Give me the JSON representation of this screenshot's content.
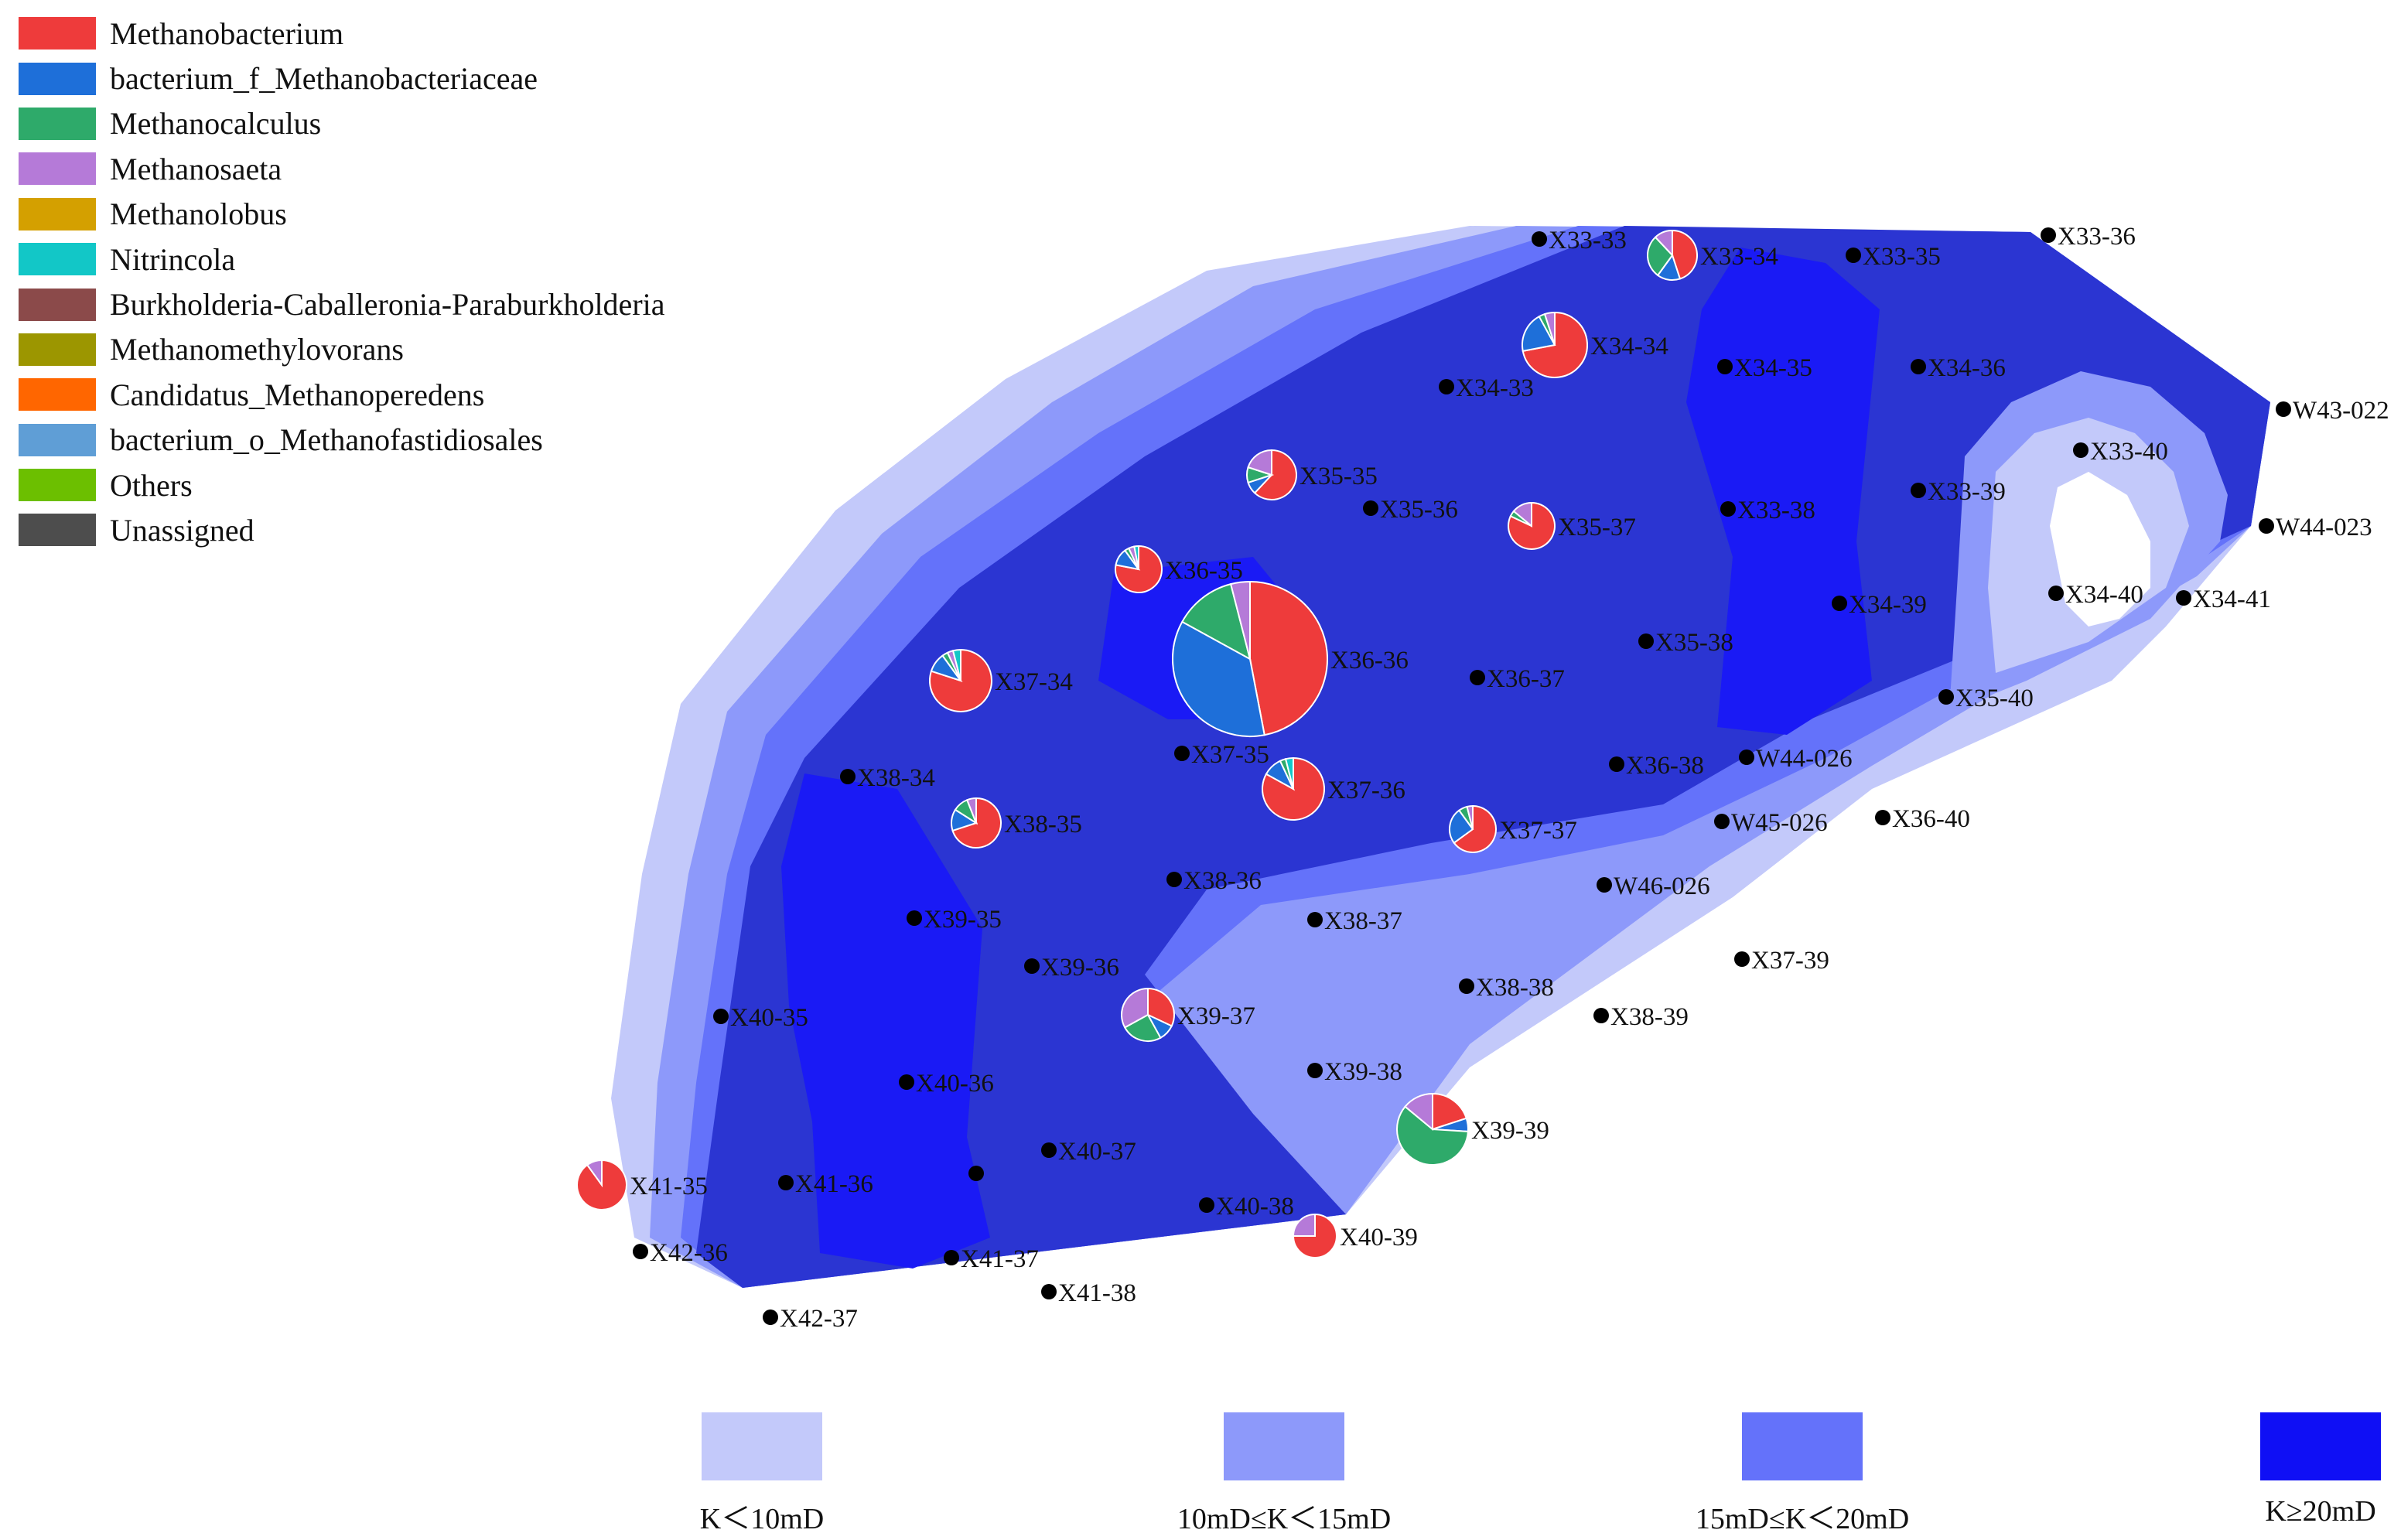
{
  "taxa_legend": [
    {
      "name": "Methanobacterium",
      "color": "#ee3b3b"
    },
    {
      "name": "bacterium_f_Methanobacteriaceae",
      "color": "#1e6fd9"
    },
    {
      "name": "Methanocalculus",
      "color": "#2eaa6a"
    },
    {
      "name": "Methanosaeta",
      "color": "#b57ad8"
    },
    {
      "name": "Methanolobus",
      "color": "#d4a000"
    },
    {
      "name": "Nitrincola",
      "color": "#12c7c7"
    },
    {
      "name": "Burkholderia-Caballeronia-Paraburkholderia",
      "color": "#8b4a4a"
    },
    {
      "name": "Methanomethylovorans",
      "color": "#9c9600"
    },
    {
      "name": "Candidatus_Methanoperedens",
      "color": "#ff6600"
    },
    {
      "name": "bacterium_o_Methanofastidiosales",
      "color": "#5f9ed6"
    },
    {
      "name": "Others",
      "color": "#6cbf00"
    },
    {
      "name": "Unassigned",
      "color": "#4d4d4d"
    }
  ],
  "permeability_legend": [
    {
      "label": "K＜10mD",
      "color": "#c3c9fa"
    },
    {
      "label": "10mD≤K＜15mD",
      "color": "#8d99fa"
    },
    {
      "label": "15mD≤K＜20mD",
      "color": "#6472fa"
    },
    {
      "label": "K≥20mD",
      "color": "#0f0ff5"
    }
  ],
  "zone_colors": {
    "outer": "#c3c9fa",
    "mid": "#8d99fa",
    "inner": "#6472fa",
    "main": "#2b35d2",
    "core": "#1a1af5"
  },
  "wells": [
    {
      "name": "X33-33"
    },
    {
      "name": "X33-36"
    },
    {
      "name": "X33-35"
    },
    {
      "name": "X34-33"
    },
    {
      "name": "X34-35"
    },
    {
      "name": "X34-36"
    },
    {
      "name": "W43-022"
    },
    {
      "name": "X33-40"
    },
    {
      "name": "X33-39"
    },
    {
      "name": "X35-36"
    },
    {
      "name": "X33-38"
    },
    {
      "name": "W44-023"
    },
    {
      "name": "X34-39"
    },
    {
      "name": "X34-40"
    },
    {
      "name": "X34-41"
    },
    {
      "name": "X35-38"
    },
    {
      "name": "X36-37"
    },
    {
      "name": "X35-40"
    },
    {
      "name": "X37-35"
    },
    {
      "name": "X36-38"
    },
    {
      "name": "W44-026"
    },
    {
      "name": "X38-34"
    },
    {
      "name": "W45-026"
    },
    {
      "name": "X36-40"
    },
    {
      "name": "X38-36"
    },
    {
      "name": "W46-026"
    },
    {
      "name": "X39-35"
    },
    {
      "name": "X38-37"
    },
    {
      "name": "X39-36"
    },
    {
      "name": "X37-39"
    },
    {
      "name": "X40-35"
    },
    {
      "name": "X38-38"
    },
    {
      "name": "X38-39"
    },
    {
      "name": "X39-38"
    },
    {
      "name": "X40-36"
    },
    {
      "name": "X40-37"
    },
    {
      "name": "X41-36"
    },
    {
      "name": "X40-38"
    },
    {
      "name": "X42-36"
    },
    {
      "name": "X41-37"
    },
    {
      "name": "X41-38"
    },
    {
      "name": "X42-37"
    },
    {
      "name": ""
    }
  ],
  "pie_wells": [
    {
      "name": "X33-34",
      "slices": [
        {
          "taxon": "Methanobacterium",
          "value": 0.45
        },
        {
          "taxon": "bacterium_f_Methanobacteriaceae",
          "value": 0.15
        },
        {
          "taxon": "Methanocalculus",
          "value": 0.28
        },
        {
          "taxon": "Methanosaeta",
          "value": 0.12
        }
      ]
    },
    {
      "name": "X34-34",
      "slices": [
        {
          "taxon": "Methanobacterium",
          "value": 0.72
        },
        {
          "taxon": "bacterium_f_Methanobacteriaceae",
          "value": 0.2
        },
        {
          "taxon": "Methanocalculus",
          "value": 0.03
        },
        {
          "taxon": "Methanosaeta",
          "value": 0.05
        }
      ]
    },
    {
      "name": "X35-35",
      "slices": [
        {
          "taxon": "Methanobacterium",
          "value": 0.62
        },
        {
          "taxon": "bacterium_f_Methanobacteriaceae",
          "value": 0.08
        },
        {
          "taxon": "Methanocalculus",
          "value": 0.1
        },
        {
          "taxon": "Methanosaeta",
          "value": 0.2
        }
      ]
    },
    {
      "name": "X35-37",
      "slices": [
        {
          "taxon": "Methanobacterium",
          "value": 0.82
        },
        {
          "taxon": "Methanocalculus",
          "value": 0.04
        },
        {
          "taxon": "Methanosaeta",
          "value": 0.14
        }
      ]
    },
    {
      "name": "X36-35",
      "slices": [
        {
          "taxon": "Methanobacterium",
          "value": 0.78
        },
        {
          "taxon": "bacterium_f_Methanobacteriaceae",
          "value": 0.12
        },
        {
          "taxon": "Methanocalculus",
          "value": 0.03
        },
        {
          "taxon": "Methanosaeta",
          "value": 0.04
        },
        {
          "taxon": "Nitrincola",
          "value": 0.03
        }
      ]
    },
    {
      "name": "X36-36",
      "slices": [
        {
          "taxon": "Methanobacterium",
          "value": 0.47
        },
        {
          "taxon": "bacterium_f_Methanobacteriaceae",
          "value": 0.36
        },
        {
          "taxon": "Methanocalculus",
          "value": 0.13
        },
        {
          "taxon": "Methanosaeta",
          "value": 0.04
        }
      ]
    },
    {
      "name": "X37-34",
      "slices": [
        {
          "taxon": "Methanobacterium",
          "value": 0.8
        },
        {
          "taxon": "bacterium_f_Methanobacteriaceae",
          "value": 0.1
        },
        {
          "taxon": "Methanocalculus",
          "value": 0.03
        },
        {
          "taxon": "Methanosaeta",
          "value": 0.03
        },
        {
          "taxon": "Nitrincola",
          "value": 0.04
        }
      ]
    },
    {
      "name": "X37-36",
      "slices": [
        {
          "taxon": "Methanobacterium",
          "value": 0.83
        },
        {
          "taxon": "bacterium_f_Methanobacteriaceae",
          "value": 0.1
        },
        {
          "taxon": "Methanocalculus",
          "value": 0.03
        },
        {
          "taxon": "Nitrincola",
          "value": 0.04
        }
      ]
    },
    {
      "name": "X38-35",
      "slices": [
        {
          "taxon": "Methanobacterium",
          "value": 0.7
        },
        {
          "taxon": "bacterium_f_Methanobacteriaceae",
          "value": 0.14
        },
        {
          "taxon": "Methanocalculus",
          "value": 0.1
        },
        {
          "taxon": "Methanosaeta",
          "value": 0.06
        }
      ]
    },
    {
      "name": "X37-37",
      "slices": [
        {
          "taxon": "Methanobacterium",
          "value": 0.65
        },
        {
          "taxon": "bacterium_f_Methanobacteriaceae",
          "value": 0.25
        },
        {
          "taxon": "Methanocalculus",
          "value": 0.06
        },
        {
          "taxon": "Methanosaeta",
          "value": 0.04
        }
      ]
    },
    {
      "name": "X39-37",
      "slices": [
        {
          "taxon": "Methanobacterium",
          "value": 0.32
        },
        {
          "taxon": "bacterium_f_Methanobacteriaceae",
          "value": 0.1
        },
        {
          "taxon": "Methanocalculus",
          "value": 0.25
        },
        {
          "taxon": "Methanosaeta",
          "value": 0.33
        }
      ]
    },
    {
      "name": "X39-39",
      "slices": [
        {
          "taxon": "Methanobacterium",
          "value": 0.2
        },
        {
          "taxon": "bacterium_f_Methanobacteriaceae",
          "value": 0.06
        },
        {
          "taxon": "Methanocalculus",
          "value": 0.6
        },
        {
          "taxon": "Methanosaeta",
          "value": 0.14
        }
      ]
    },
    {
      "name": "X41-35",
      "slices": [
        {
          "taxon": "Methanobacterium",
          "value": 0.9
        },
        {
          "taxon": "Methanosaeta",
          "value": 0.1
        }
      ]
    },
    {
      "name": "X40-39",
      "slices": [
        {
          "taxon": "Methanobacterium",
          "value": 0.75
        },
        {
          "taxon": "Methanosaeta",
          "value": 0.25
        }
      ]
    }
  ]
}
